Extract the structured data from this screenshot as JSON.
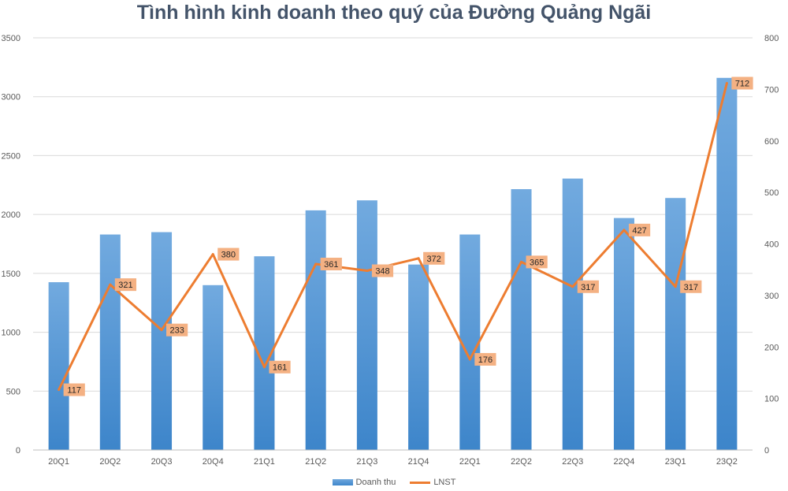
{
  "chart_data": {
    "type": "bar",
    "title": "Tình hình kinh doanh theo quý của Đường Quảng Ngãi",
    "categories": [
      "20Q1",
      "20Q2",
      "20Q3",
      "20Q4",
      "21Q1",
      "21Q2",
      "21Q3",
      "21Q4",
      "22Q1",
      "22Q2",
      "22Q3",
      "22Q4",
      "23Q1",
      "23Q2"
    ],
    "series": [
      {
        "name": "Doanh thu",
        "type": "bar",
        "axis": "left",
        "color": "#5b9bd5",
        "values": [
          1425,
          1830,
          1850,
          1400,
          1645,
          2035,
          2120,
          1575,
          1830,
          2215,
          2305,
          1970,
          2140,
          3160
        ]
      },
      {
        "name": "LNST",
        "type": "line",
        "axis": "right",
        "color": "#ed7d31",
        "values": [
          117,
          321,
          233,
          380,
          161,
          361,
          348,
          372,
          176,
          365,
          317,
          427,
          317,
          712
        ]
      }
    ],
    "ylim_left": [
      0,
      3500
    ],
    "yticks_left": [
      "0",
      "500",
      "1000",
      "1500",
      "2000",
      "2500",
      "3000",
      "3500"
    ],
    "ylim_right": [
      0,
      800
    ],
    "yticks_right": [
      "0",
      "100",
      "200",
      "300",
      "400",
      "500",
      "600",
      "700",
      "800"
    ],
    "grid": true,
    "legend_position": "bottom",
    "label_color": "#f4b183"
  }
}
